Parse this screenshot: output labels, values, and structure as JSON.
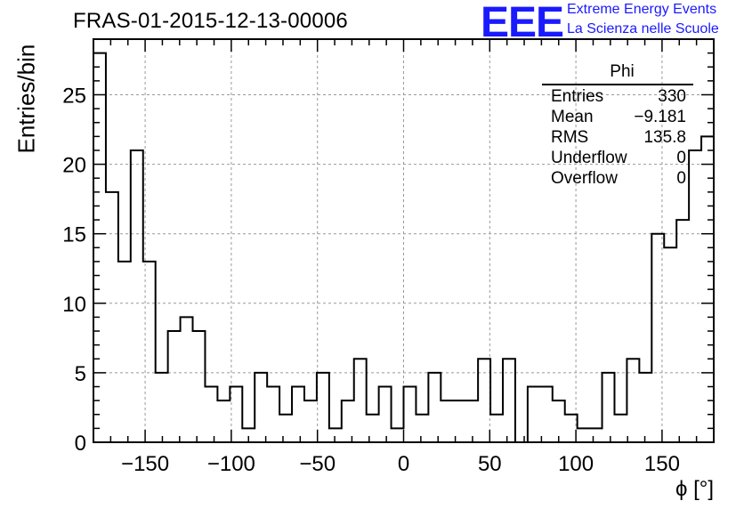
{
  "chart_data": {
    "type": "bar",
    "title": "FRAS-01-2015-12-13-00006",
    "xlabel": "ϕ [°]",
    "ylabel": "Entries/bin",
    "xlim": [
      -180,
      180
    ],
    "ylim": [
      0,
      29
    ],
    "bin_width": 7.2,
    "xticks": [
      -150,
      -100,
      -50,
      0,
      50,
      100,
      150
    ],
    "xtick_labels": [
      "−150",
      "−100",
      "−50",
      "0",
      "50",
      "100",
      "150"
    ],
    "yticks": [
      0,
      5,
      10,
      15,
      20,
      25
    ],
    "ytick_labels": [
      "0",
      "5",
      "10",
      "15",
      "20",
      "25"
    ],
    "grid": true,
    "values": [
      28,
      18,
      13,
      21,
      13,
      5,
      8,
      9,
      8,
      4,
      3,
      4,
      1,
      5,
      4,
      2,
      4,
      3,
      5,
      1,
      3,
      6,
      2,
      4,
      1,
      4,
      2,
      5,
      3,
      3,
      3,
      6,
      2,
      6,
      0,
      4,
      4,
      3,
      2,
      1,
      1,
      5,
      2,
      6,
      5,
      15,
      14,
      16,
      21,
      22
    ]
  },
  "stats_box": {
    "name": "Phi",
    "rows": [
      {
        "label": "Entries",
        "value": "330"
      },
      {
        "label": "Mean",
        "value": "−9.181"
      },
      {
        "label": "RMS",
        "value": "135.8"
      },
      {
        "label": "Underflow",
        "value": "0"
      },
      {
        "label": "Overflow",
        "value": "0"
      }
    ]
  },
  "logo": {
    "mark": "EEE",
    "line1": "Extreme Energy Events",
    "line2": "La Scienza nelle Scuole"
  },
  "colors": {
    "logo": "#1a1aff",
    "line": "#000000",
    "grid": "#999999"
  }
}
